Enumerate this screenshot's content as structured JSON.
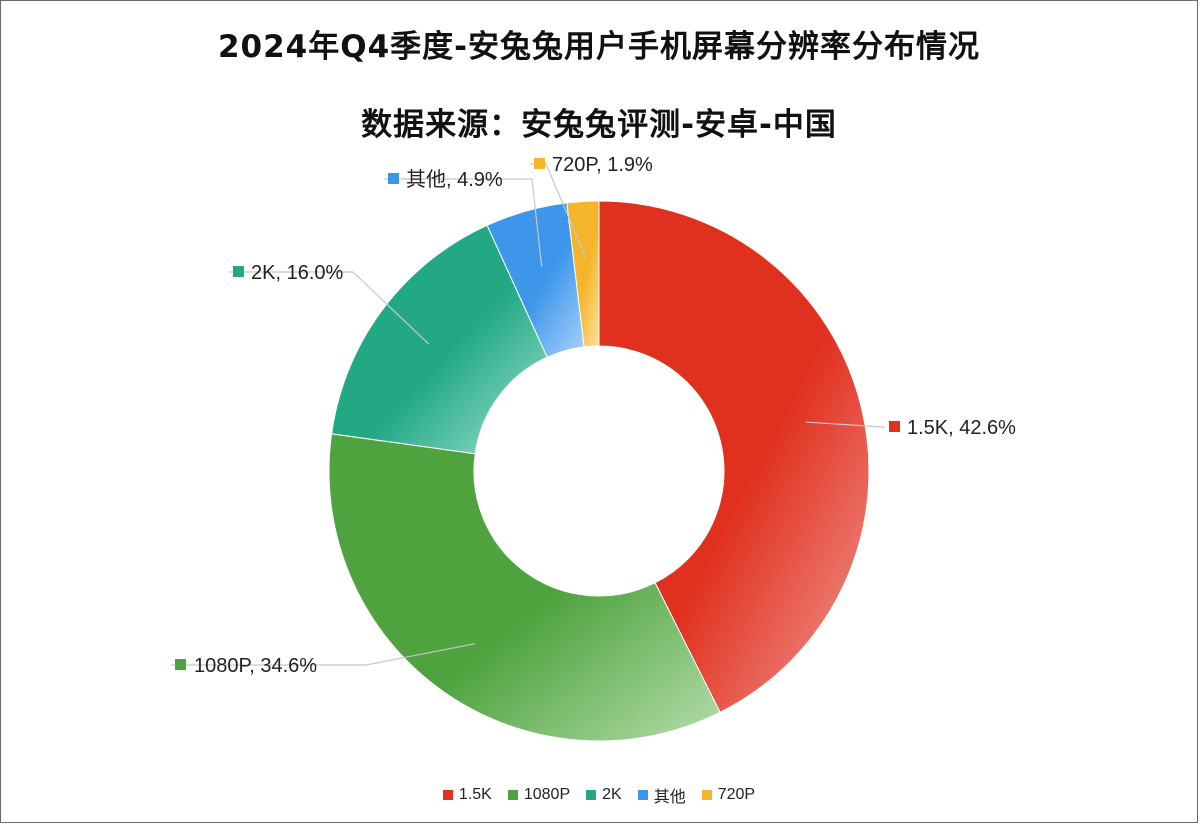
{
  "chart_data": {
    "type": "pie",
    "style": "donut",
    "title": "2024年Q4季度-安兔兔用户手机屏幕分辨率分布情况",
    "subtitle": "数据来源：安兔兔评测-安卓-中国",
    "start_angle_deg": 0,
    "direction": "clockwise",
    "legend_position": "bottom",
    "slices": [
      {
        "label": "1.5K",
        "value": 42.6,
        "display": "1.5K, 42.6%",
        "color": "#e0301e",
        "color_light": "#f29b94"
      },
      {
        "label": "1080P",
        "value": 34.6,
        "display": "1080P, 34.6%",
        "color": "#4ea33e",
        "color_light": "#b5ddab"
      },
      {
        "label": "2K",
        "value": 16.0,
        "display": "2K, 16.0%",
        "color": "#22a884",
        "color_light": "#a3e3d2"
      },
      {
        "label": "其他",
        "value": 4.9,
        "display": "其他, 4.9%",
        "color": "#3d96ea",
        "color_light": "#a9d2fb"
      },
      {
        "label": "720P",
        "value": 1.9,
        "display": "720P, 1.9%",
        "color": "#f5b52a",
        "color_light": "#fde0a0"
      }
    ]
  }
}
